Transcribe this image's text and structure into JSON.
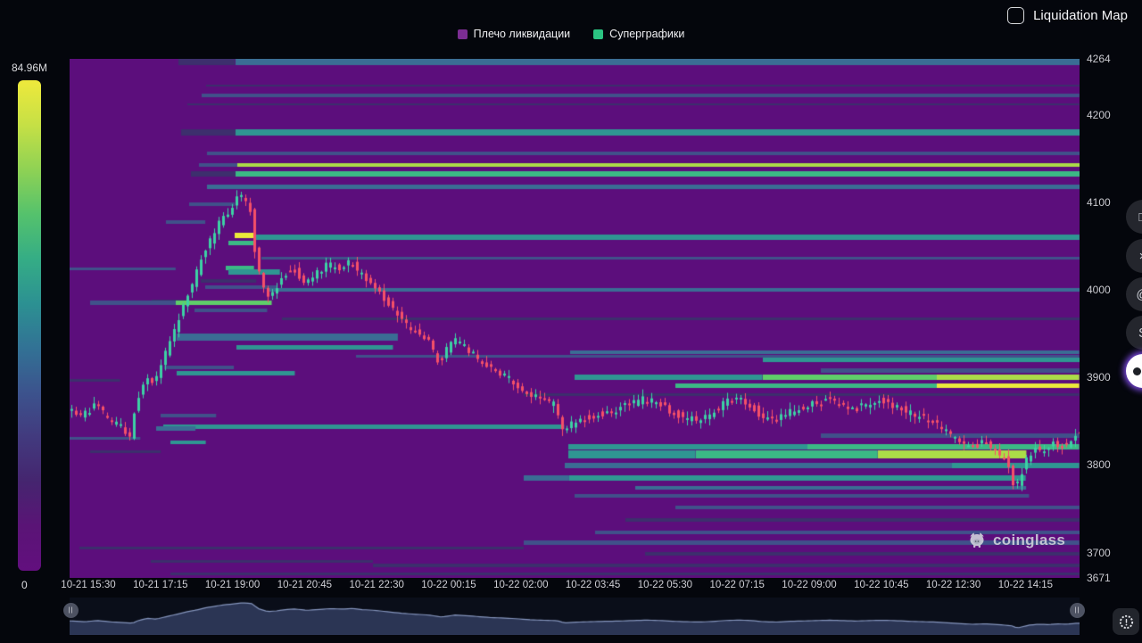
{
  "header": {
    "toggle_label": "Liquidation Map",
    "checkbox_checked": false
  },
  "legend": {
    "items": [
      {
        "label": "Плечо ликвидации",
        "color": "#7b2d93"
      },
      {
        "label": "Суперграфики",
        "color": "#2bc482"
      }
    ]
  },
  "colorbar": {
    "max_label": "84.96M",
    "min_label": "0",
    "gradient": [
      "#eee93c",
      "#c6e045",
      "#8fd254",
      "#55c26c",
      "#35ad85",
      "#2c9192",
      "#327295",
      "#3c538d",
      "#423a7e",
      "#45256f",
      "#5a1476",
      "#620f7e"
    ]
  },
  "watermark": {
    "brand": "coinglass"
  },
  "side_buttons": [
    {
      "name": "chat-square-icon",
      "glyph": "□"
    },
    {
      "name": "x-social-icon",
      "glyph": "×"
    },
    {
      "name": "at-icon",
      "glyph": "@"
    },
    {
      "name": "messenger-icon",
      "glyph": "S"
    },
    {
      "name": "support-widget-icon",
      "glyph": ""
    }
  ],
  "navigator": {
    "left_handle_glyph": "||",
    "right_handle_glyph": "||"
  },
  "chart_data": {
    "type": "heatmap+candlestick",
    "title": "Liquidation Map",
    "legend_entries": [
      "Плечо ликвидации",
      "Суперграфики"
    ],
    "max_liquidation_label": "84.96M",
    "min_liquidation_label": "0",
    "price_axis": {
      "min": 3671,
      "max": 4264,
      "ticks": [
        4264,
        4200,
        4100,
        4000,
        3900,
        3800,
        3700,
        3671
      ]
    },
    "time_axis": {
      "labels": [
        "10-21 15:30",
        "10-21 17:15",
        "10-21 19:00",
        "10-21 20:45",
        "10-21 22:30",
        "10-22 00:15",
        "10-22 02:00",
        "10-22 03:45",
        "10-22 05:30",
        "10-22 07:15",
        "10-22 09:00",
        "10-22 10:45",
        "10-22 12:30",
        "10-22 14:15"
      ]
    },
    "colors": {
      "background": "#5c0e7c",
      "up": "#3dd1a4",
      "down": "#f55068",
      "tiers": [
        "#3d2f6d",
        "#40518a",
        "#3a6d94",
        "#2f9692",
        "#3bb985",
        "#5fce69",
        "#abdc48",
        "#ebe93b"
      ],
      "nav_fill": "#2b3554",
      "nav_line": "#8494bc"
    },
    "price_path": [
      [
        0.002,
        3865
      ],
      [
        0.015,
        3855
      ],
      [
        0.028,
        3870
      ],
      [
        0.042,
        3850
      ],
      [
        0.055,
        3842
      ],
      [
        0.062,
        3833
      ],
      [
        0.068,
        3870
      ],
      [
        0.077,
        3900
      ],
      [
        0.086,
        3890
      ],
      [
        0.095,
        3920
      ],
      [
        0.108,
        3960
      ],
      [
        0.117,
        3990
      ],
      [
        0.125,
        4010
      ],
      [
        0.134,
        4040
      ],
      [
        0.143,
        4060
      ],
      [
        0.152,
        4080
      ],
      [
        0.163,
        4095
      ],
      [
        0.171,
        4108
      ],
      [
        0.18,
        4100
      ],
      [
        0.187,
        4030
      ],
      [
        0.196,
        3992
      ],
      [
        0.205,
        4000
      ],
      [
        0.214,
        4018
      ],
      [
        0.223,
        4025
      ],
      [
        0.236,
        4008
      ],
      [
        0.245,
        4018
      ],
      [
        0.258,
        4030
      ],
      [
        0.271,
        4024
      ],
      [
        0.28,
        4034
      ],
      [
        0.289,
        4018
      ],
      [
        0.302,
        4008
      ],
      [
        0.315,
        3988
      ],
      [
        0.329,
        3968
      ],
      [
        0.342,
        3955
      ],
      [
        0.355,
        3945
      ],
      [
        0.368,
        3918
      ],
      [
        0.382,
        3944
      ],
      [
        0.39,
        3938
      ],
      [
        0.404,
        3924
      ],
      [
        0.417,
        3910
      ],
      [
        0.43,
        3904
      ],
      [
        0.443,
        3894
      ],
      [
        0.457,
        3880
      ],
      [
        0.47,
        3874
      ],
      [
        0.483,
        3868
      ],
      [
        0.49,
        3838
      ],
      [
        0.496,
        3845
      ],
      [
        0.505,
        3850
      ],
      [
        0.519,
        3856
      ],
      [
        0.532,
        3860
      ],
      [
        0.545,
        3864
      ],
      [
        0.558,
        3870
      ],
      [
        0.572,
        3876
      ],
      [
        0.585,
        3870
      ],
      [
        0.598,
        3860
      ],
      [
        0.611,
        3854
      ],
      [
        0.625,
        3850
      ],
      [
        0.638,
        3860
      ],
      [
        0.651,
        3872
      ],
      [
        0.664,
        3876
      ],
      [
        0.678,
        3868
      ],
      [
        0.686,
        3855
      ],
      [
        0.7,
        3850
      ],
      [
        0.713,
        3860
      ],
      [
        0.726,
        3864
      ],
      [
        0.739,
        3870
      ],
      [
        0.753,
        3875
      ],
      [
        0.766,
        3869
      ],
      [
        0.779,
        3864
      ],
      [
        0.792,
        3870
      ],
      [
        0.806,
        3874
      ],
      [
        0.819,
        3868
      ],
      [
        0.832,
        3860
      ],
      [
        0.845,
        3854
      ],
      [
        0.859,
        3849
      ],
      [
        0.868,
        3840
      ],
      [
        0.881,
        3830
      ],
      [
        0.894,
        3820
      ],
      [
        0.907,
        3826
      ],
      [
        0.921,
        3814
      ],
      [
        0.934,
        3798
      ],
      [
        0.938,
        3768
      ],
      [
        0.943,
        3786
      ],
      [
        0.951,
        3810
      ],
      [
        0.96,
        3820
      ],
      [
        0.969,
        3815
      ],
      [
        0.978,
        3826
      ],
      [
        0.987,
        3820
      ],
      [
        0.997,
        3834
      ]
    ],
    "liquidation_levels": [
      [
        4260,
        0.108,
        0.164,
        0,
        7
      ],
      [
        4260,
        0.164,
        1,
        2,
        7
      ],
      [
        4233,
        0.135,
        1,
        0,
        2
      ],
      [
        4222,
        0.131,
        1,
        1,
        4
      ],
      [
        4212,
        0.117,
        1,
        0,
        2
      ],
      [
        4180,
        0.11,
        0.164,
        0,
        7
      ],
      [
        4180,
        0.164,
        1,
        3,
        7
      ],
      [
        4156,
        0.136,
        1,
        1,
        4
      ],
      [
        4143,
        0.128,
        0.166,
        1,
        4
      ],
      [
        4143,
        0.166,
        1,
        6,
        4
      ],
      [
        4133,
        0.12,
        0.164,
        0,
        6
      ],
      [
        4133,
        0.164,
        1,
        4,
        6
      ],
      [
        4118,
        0.136,
        1,
        2,
        5
      ],
      [
        4098,
        0.118,
        0.163,
        1,
        4
      ],
      [
        4078,
        0.095,
        0.134,
        1,
        4
      ],
      [
        4062,
        0.163,
        0.184,
        7,
        6
      ],
      [
        4054,
        0.157,
        0.183,
        4,
        5
      ],
      [
        4060,
        0.183,
        1,
        3,
        6
      ],
      [
        4036,
        0.19,
        1,
        1,
        3
      ],
      [
        4025,
        0.155,
        0.183,
        4,
        5
      ],
      [
        4020,
        0.157,
        0.208,
        3,
        6
      ],
      [
        4024,
        0.0,
        0.105,
        1,
        3
      ],
      [
        4010,
        0.13,
        0.185,
        0,
        4
      ],
      [
        4003,
        0.134,
        0.205,
        1,
        4
      ],
      [
        4000,
        0.196,
        1,
        2,
        4
      ],
      [
        3987,
        0.081,
        0.117,
        0,
        3
      ],
      [
        3985,
        0.02,
        0.105,
        1,
        5
      ],
      [
        3985,
        0.105,
        0.2,
        5,
        5
      ],
      [
        3977,
        0.124,
        0.196,
        1,
        4
      ],
      [
        3967,
        0.21,
        1,
        0,
        3
      ],
      [
        3946,
        0.106,
        0.325,
        2,
        8
      ],
      [
        3934,
        0.165,
        0.32,
        3,
        5
      ],
      [
        3924,
        0.284,
        1,
        1,
        3
      ],
      [
        3911,
        0.094,
        0.163,
        1,
        4
      ],
      [
        3905,
        0.106,
        0.223,
        3,
        5
      ],
      [
        3897,
        0.0,
        0.05,
        0,
        3
      ],
      [
        3929,
        0.496,
        1,
        2,
        4
      ],
      [
        3920,
        0.686,
        1,
        3,
        5
      ],
      [
        3908,
        0.744,
        1,
        1,
        5
      ],
      [
        3900,
        0.5,
        0.686,
        3,
        6
      ],
      [
        3900,
        0.686,
        0.859,
        5,
        6
      ],
      [
        3900,
        0.859,
        1,
        6,
        6
      ],
      [
        3891,
        0.6,
        0.859,
        4,
        5
      ],
      [
        3891,
        0.859,
        1,
        7,
        5
      ],
      [
        3880,
        0.45,
        1,
        0,
        3
      ],
      [
        3856,
        0.09,
        0.145,
        1,
        4
      ],
      [
        3844,
        0.093,
        0.49,
        3,
        5
      ],
      [
        3842,
        0.086,
        0.125,
        2,
        5
      ],
      [
        3830,
        0.0,
        0.07,
        1,
        3
      ],
      [
        3826,
        0.1,
        0.135,
        3,
        4
      ],
      [
        3834,
        0.744,
        1,
        1,
        5
      ],
      [
        3821,
        0.494,
        0.731,
        3,
        6
      ],
      [
        3821,
        0.731,
        1,
        4,
        6
      ],
      [
        3815,
        0.02,
        0.09,
        0,
        3
      ],
      [
        3812,
        0.494,
        0.62,
        3,
        9
      ],
      [
        3812,
        0.62,
        0.8,
        4,
        9
      ],
      [
        3812,
        0.8,
        0.947,
        6,
        9
      ],
      [
        3799,
        0.49,
        0.874,
        2,
        6
      ],
      [
        3799,
        0.874,
        1,
        3,
        6
      ],
      [
        3785,
        0.45,
        0.495,
        2,
        6
      ],
      [
        3785,
        0.495,
        0.947,
        3,
        6
      ],
      [
        3774,
        0.56,
        0.947,
        2,
        4
      ],
      [
        3765,
        0.5,
        0.95,
        1,
        4
      ],
      [
        3752,
        0.6,
        1,
        1,
        4
      ],
      [
        3737,
        0.55,
        1,
        0,
        4
      ],
      [
        3723,
        0.52,
        1,
        1,
        4
      ],
      [
        3711,
        0.45,
        1,
        1,
        5
      ],
      [
        3705,
        0.01,
        0.45,
        0,
        3
      ],
      [
        3699,
        0.57,
        1,
        0,
        4
      ],
      [
        3690,
        0.08,
        0.3,
        0,
        3
      ],
      [
        3685,
        0.3,
        1,
        0,
        4
      ],
      [
        3676,
        0.1,
        1,
        0,
        3
      ]
    ]
  }
}
